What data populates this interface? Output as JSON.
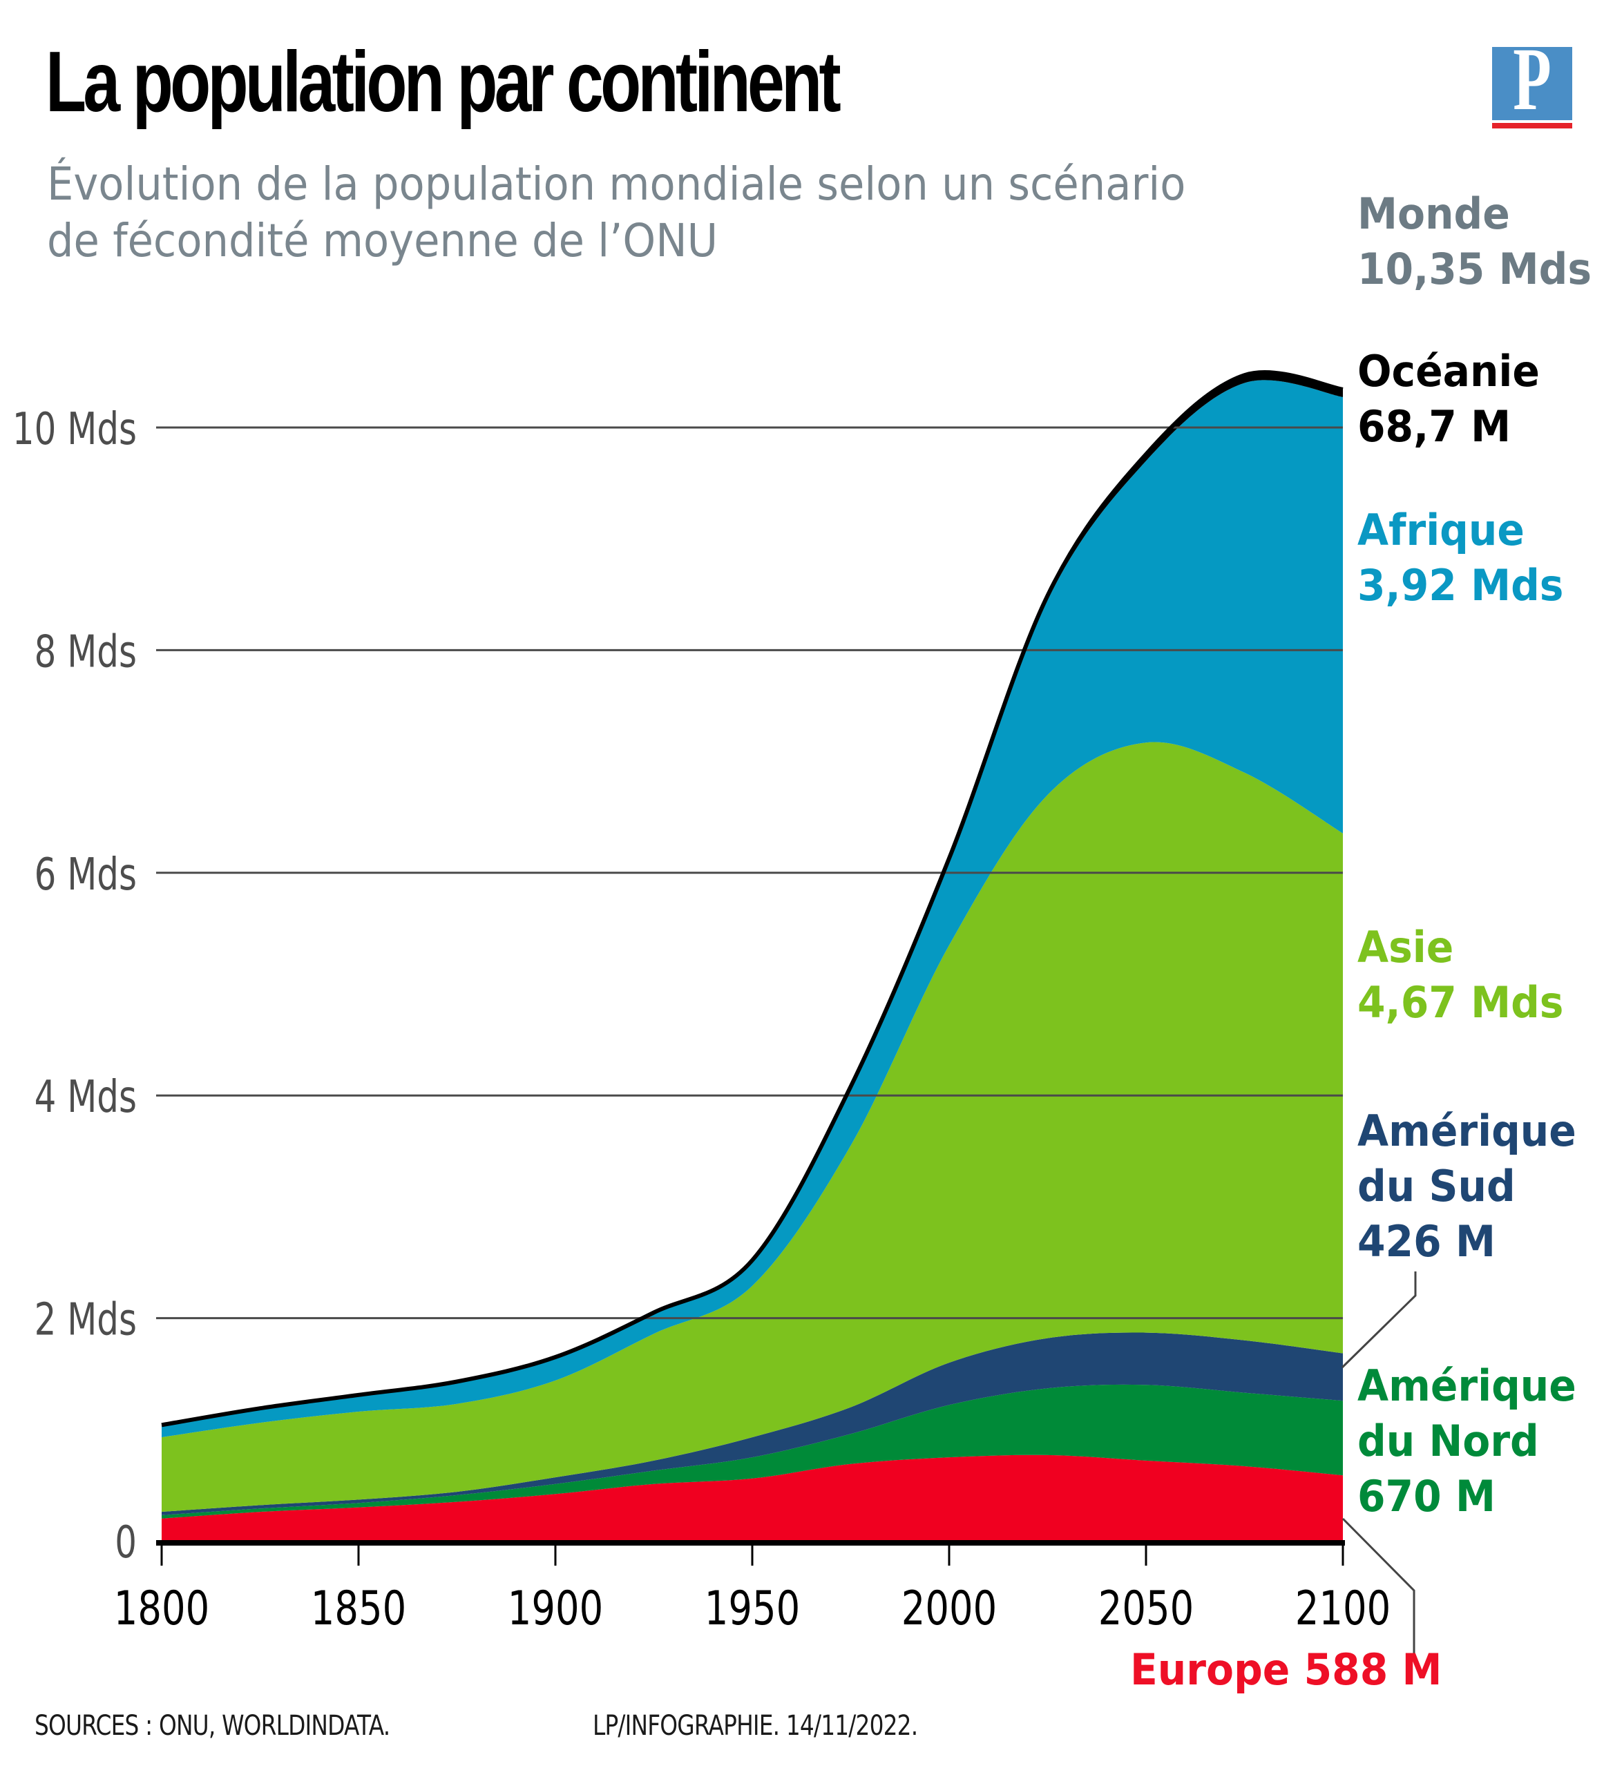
{
  "header": {
    "title": "La population par continent",
    "subtitle_line1": "Évolution de la population mondiale selon un scénario",
    "subtitle_line2": "de fécondité moyenne de l’ONU",
    "logo_letter": "P",
    "logo_icon": "le-parisien-logo"
  },
  "labels": {
    "monde": {
      "name": "Monde",
      "value": "10,35 Mds",
      "color": "#6c7b84"
    },
    "oceanie": {
      "name": "Océanie",
      "value": "68,7 M",
      "color": "#000000"
    },
    "afrique": {
      "name": "Afrique",
      "value": "3,92 Mds",
      "color": "#0a98c3"
    },
    "asie": {
      "name": "Asie",
      "value": "4,67 Mds",
      "color": "#7dc21e"
    },
    "amerique_sud": {
      "name_line1": "Amérique",
      "name_line2": "du Sud",
      "value": "426 M",
      "color": "#1f4673"
    },
    "amerique_nord": {
      "name_line1": "Amérique",
      "name_line2": "du Nord",
      "value": "670 M",
      "color": "#008a3a"
    },
    "europe": {
      "text": "Europe 588 M",
      "color": "#ee0f26"
    }
  },
  "footer": {
    "sources": "SOURCES : ONU, WORLDINDATA.",
    "credit": "LP/INFOGRAPHIE.  14/11/2022."
  },
  "chart_data": {
    "type": "area",
    "stacked": true,
    "title": "La population par continent",
    "subtitle": "Évolution de la population mondiale selon un scénario de fécondité moyenne de l’ONU",
    "xlabel": "",
    "ylabel": "",
    "unit": "Mds",
    "x": [
      1800,
      1825,
      1850,
      1875,
      1900,
      1925,
      1950,
      1975,
      2000,
      2025,
      2050,
      2075,
      2100
    ],
    "xlim": [
      1800,
      2100
    ],
    "ylim": [
      0,
      10.6
    ],
    "x_ticks": [
      1800,
      1850,
      1900,
      1950,
      2000,
      2050,
      2100
    ],
    "x_tick_labels": [
      "1800",
      "1850",
      "1900",
      "1950",
      "2000",
      "2050",
      "2100"
    ],
    "y_ticks": [
      0,
      2,
      4,
      6,
      8,
      10
    ],
    "y_tick_labels": [
      "0",
      "2 Mds",
      "4 Mds",
      "6 Mds",
      "8 Mds",
      "10 Mds"
    ],
    "grid": true,
    "legend": "direct labels at right",
    "series": [
      {
        "name": "Europe",
        "color": "#f00020",
        "values": [
          0.2,
          0.26,
          0.3,
          0.35,
          0.42,
          0.51,
          0.56,
          0.69,
          0.75,
          0.77,
          0.72,
          0.67,
          0.588
        ]
      },
      {
        "name": "Amérique du Nord",
        "color": "#008a38",
        "values": [
          0.03,
          0.03,
          0.04,
          0.06,
          0.09,
          0.12,
          0.19,
          0.27,
          0.47,
          0.6,
          0.68,
          0.66,
          0.67
        ]
      },
      {
        "name": "Amérique du Sud",
        "color": "#1f4673",
        "values": [
          0.03,
          0.03,
          0.03,
          0.03,
          0.06,
          0.09,
          0.18,
          0.24,
          0.38,
          0.45,
          0.47,
          0.47,
          0.426
        ]
      },
      {
        "name": "Asie",
        "color": "#7dc21e",
        "values": [
          0.67,
          0.74,
          0.79,
          0.79,
          0.87,
          1.14,
          1.36,
          2.35,
          3.75,
          4.88,
          5.3,
          5.1,
          4.67
        ]
      },
      {
        "name": "Afrique",
        "color": "#0599c2",
        "values": [
          0.1,
          0.12,
          0.14,
          0.19,
          0.2,
          0.18,
          0.21,
          0.5,
          0.75,
          1.75,
          2.53,
          3.5,
          3.92
        ]
      },
      {
        "name": "Océanie",
        "color": "#000000",
        "values": [
          0.01,
          0.01,
          0.01,
          0.01,
          0.01,
          0.01,
          0.02,
          0.03,
          0.03,
          0.04,
          0.06,
          0.07,
          0.0687
        ]
      }
    ],
    "annotations": [
      {
        "text": "Monde 10,35 Mds",
        "x": 2100,
        "y": 10.35
      },
      {
        "text": "Océanie 68,7 M",
        "x": 2100
      },
      {
        "text": "Afrique 3,92 Mds",
        "x": 2100
      },
      {
        "text": "Asie 4,67 Mds",
        "x": 2100
      },
      {
        "text": "Amérique du Sud 426 M",
        "x": 2100
      },
      {
        "text": "Amérique du Nord 670 M",
        "x": 2100
      },
      {
        "text": "Europe 588 M",
        "x": 2100
      }
    ]
  }
}
